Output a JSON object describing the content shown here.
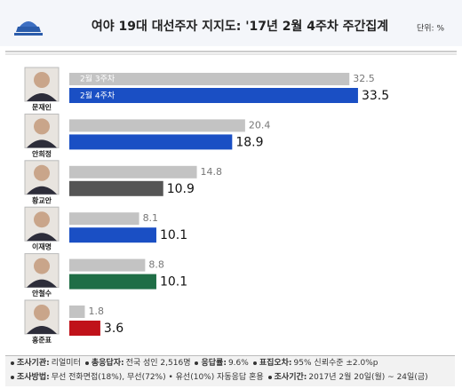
{
  "chart_data": {
    "type": "bar",
    "title": "여야 19대 대선주자 지지도: '17년 2월 4주차 주간집계",
    "unit": "단위: %",
    "categories": [
      "문재인",
      "안희정",
      "황교안",
      "이재명",
      "안철수",
      "홍준표"
    ],
    "series": [
      {
        "name": "2월 3주차",
        "color": "#c3c3c3",
        "values": [
          32.5,
          20.4,
          14.8,
          8.1,
          8.8,
          1.8
        ]
      },
      {
        "name": "2월 4주차",
        "colors": [
          "#1a4fc4",
          "#1a4fc4",
          "#555555",
          "#1a4fc4",
          "#1f6e46",
          "#c0121a"
        ],
        "values": [
          33.5,
          18.9,
          10.9,
          10.1,
          10.1,
          3.6
        ]
      }
    ],
    "notes": [
      [
        {
          "label": "조사기관:",
          "text": "리얼미터"
        },
        {
          "label": "총응답자:",
          "text": "전국 성인 2,516명"
        },
        {
          "label": "응답률:",
          "text": "9.6%"
        },
        {
          "label": "표집오차:",
          "text": "95% 신뢰수준 ±2.0%p"
        }
      ],
      [
        {
          "label": "조사방법:",
          "text": "무선 전화면접(18%), 무선(72%) • 유선(10%) 자동응답 혼용"
        },
        {
          "label": "조사기간:",
          "text": "2017년 2월 20일(월) ~ 24일(금)"
        }
      ]
    ]
  }
}
